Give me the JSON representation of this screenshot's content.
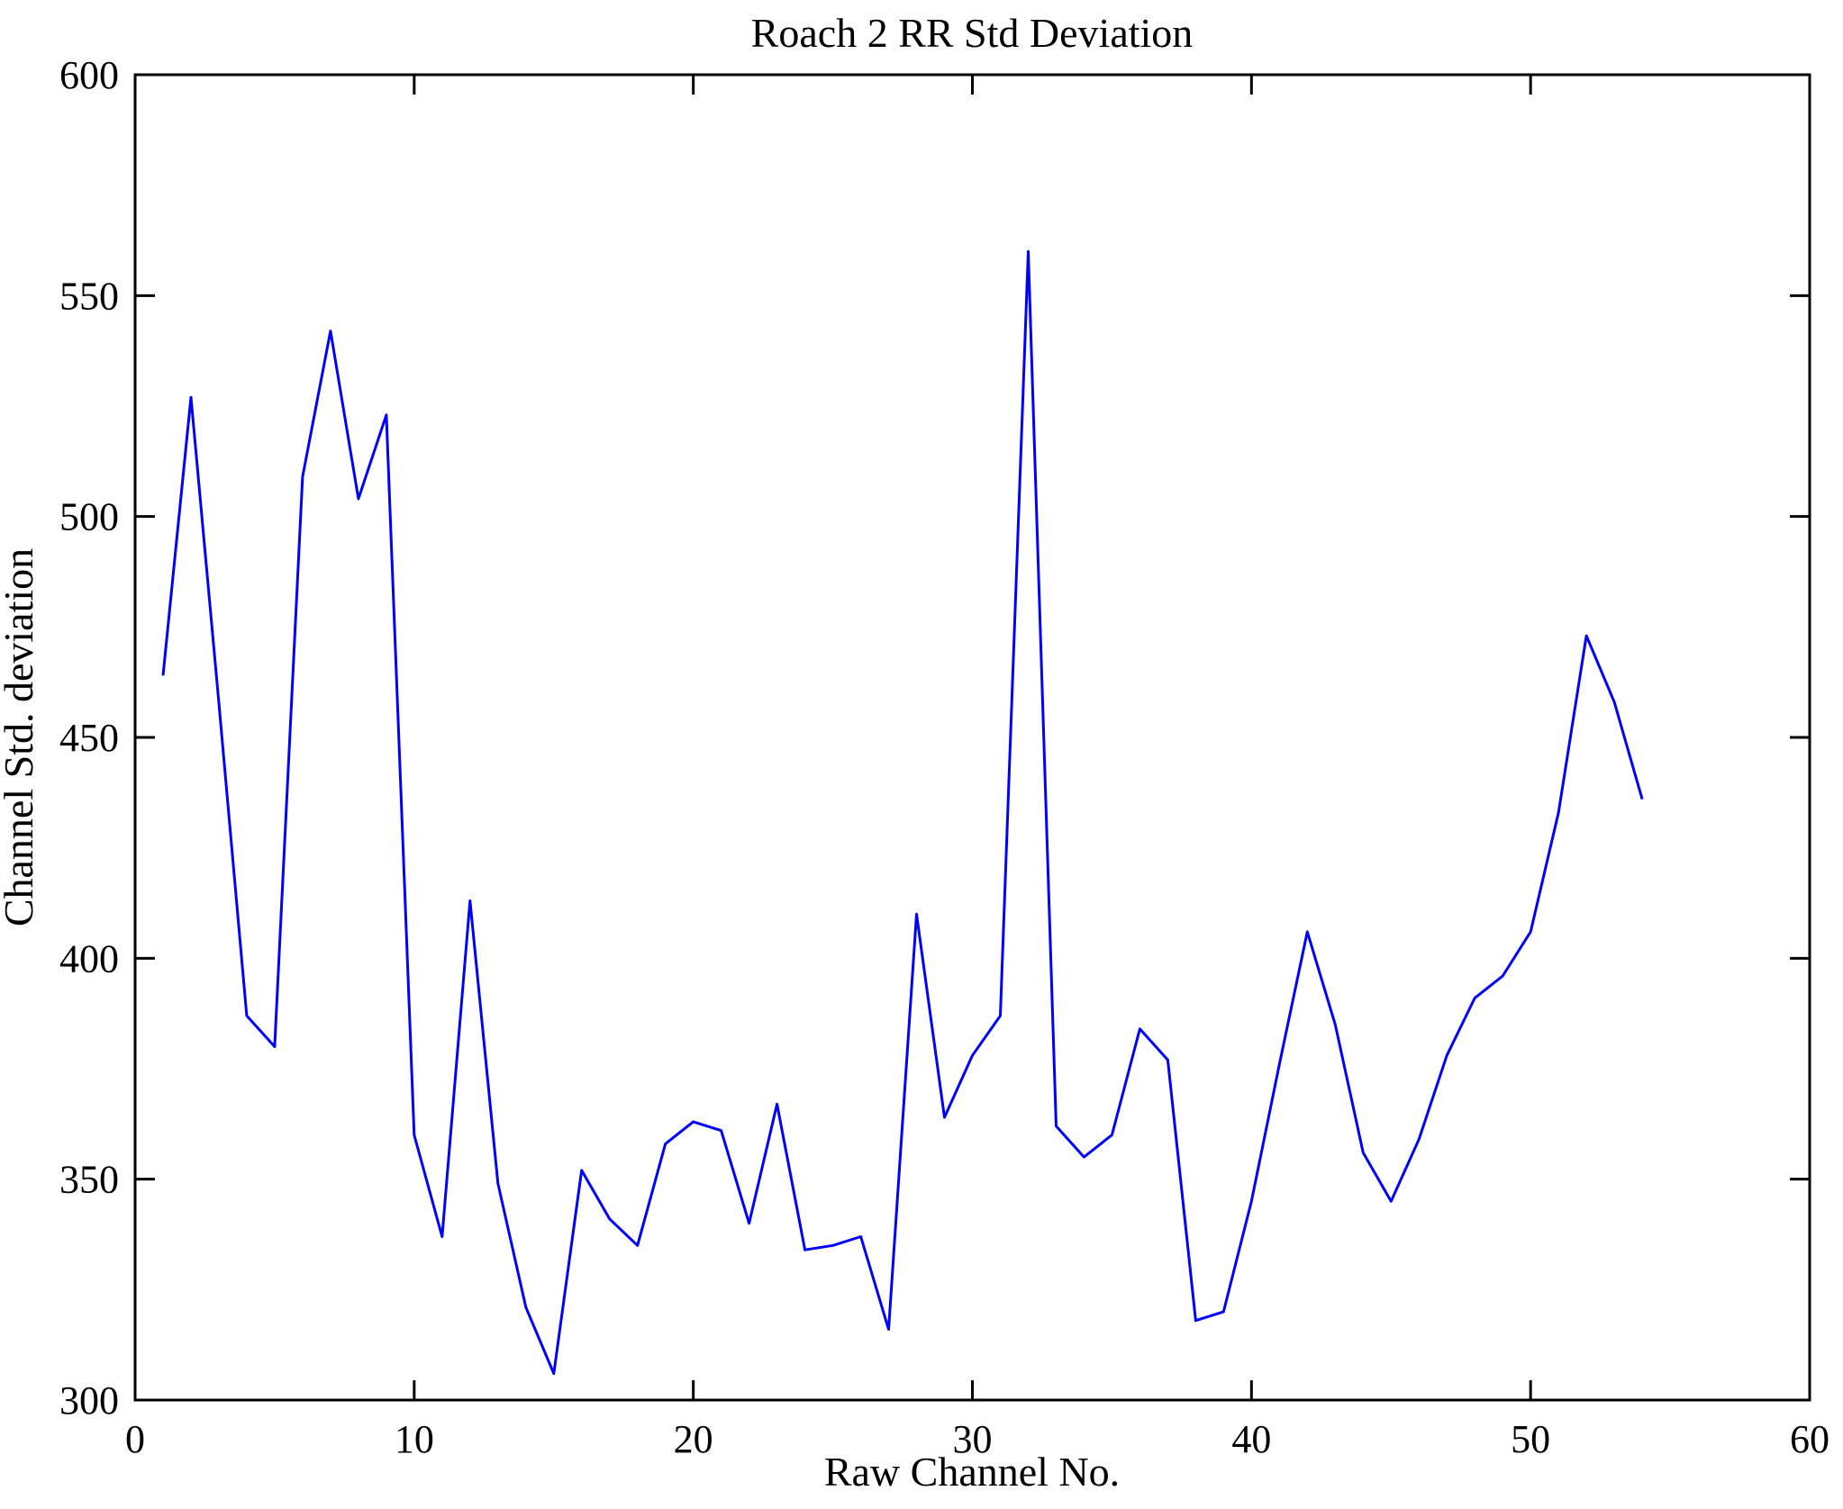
{
  "chart_data": {
    "type": "line",
    "title": "Roach 2 RR Std Deviation",
    "xlabel": "Raw Channel No.",
    "ylabel": "Channel Std. deviation",
    "xlim": [
      0,
      60
    ],
    "ylim": [
      300,
      600
    ],
    "xticks": [
      0,
      10,
      20,
      30,
      40,
      50,
      60
    ],
    "yticks": [
      300,
      350,
      400,
      450,
      500,
      550,
      600
    ],
    "grid": false,
    "legend": "none",
    "line_color": "#0000FF",
    "axis_color": "#000000",
    "background_color": "#FFFFFF",
    "series": [
      {
        "name": "Channel Std. deviation",
        "x": [
          1,
          2,
          3,
          4,
          5,
          6,
          7,
          8,
          9,
          10,
          11,
          12,
          13,
          14,
          15,
          16,
          17,
          18,
          19,
          20,
          21,
          22,
          23,
          24,
          25,
          26,
          27,
          28,
          29,
          30,
          31,
          32,
          33,
          34,
          35,
          36,
          37,
          38,
          39,
          40,
          41,
          42,
          43,
          44,
          45,
          46,
          47,
          48,
          49,
          50,
          51,
          52,
          53,
          54
        ],
        "y": [
          464,
          527,
          458,
          387,
          380,
          509,
          542,
          504,
          523,
          360,
          337,
          413,
          349,
          321,
          306,
          352,
          341,
          335,
          358,
          363,
          361,
          340,
          367,
          334,
          335,
          337,
          316,
          410,
          364,
          378,
          387,
          560,
          362,
          355,
          360,
          384,
          377,
          318,
          320,
          345,
          376,
          406,
          385,
          356,
          345,
          359,
          378,
          391,
          396,
          406,
          433,
          473,
          458,
          436
        ]
      }
    ]
  }
}
